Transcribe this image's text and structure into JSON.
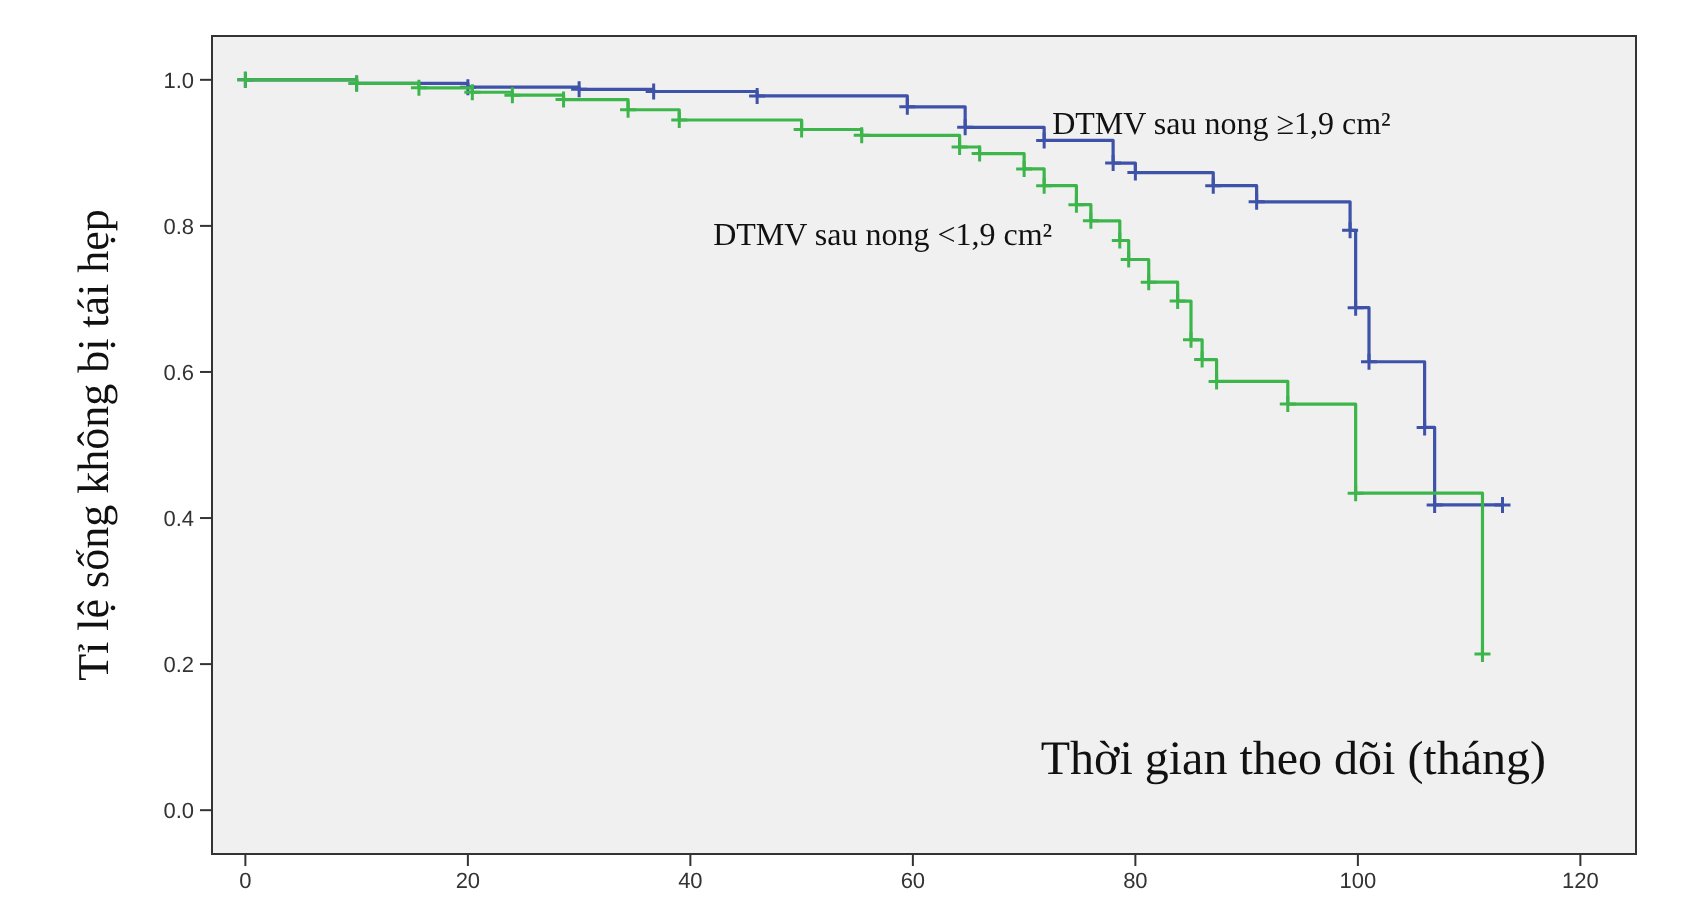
{
  "chart_data": {
    "type": "step",
    "xlabel": "Thời gian theo dõi (tháng)",
    "ylabel": "Tỉ lệ sống không bị tái hẹp",
    "xlim": [
      -3,
      125
    ],
    "ylim": [
      -0.06,
      1.06
    ],
    "xticks": [
      0,
      20,
      40,
      60,
      80,
      100,
      120
    ],
    "yticks": [
      {
        "value": 0,
        "label": "0.0"
      },
      {
        "value": 0.2,
        "label": "0.2"
      },
      {
        "value": 0.4,
        "label": "0.4"
      },
      {
        "value": 0.6,
        "label": "0.6"
      },
      {
        "value": 0.8,
        "label": "0.8"
      },
      {
        "value": 1,
        "label": "1.0"
      }
    ],
    "grid": false,
    "legend": false,
    "marker": "cross",
    "line_style": "solid",
    "series": [
      {
        "name": "DTMV sau nong  ≥1,9 cm²",
        "color": "#3d52a8",
        "x": [
          0,
          10,
          20,
          30,
          36.7,
          46,
          59.5,
          64.7,
          71.8,
          78,
          80,
          87,
          90.9,
          99.3,
          99.8,
          101,
          106,
          106.9,
          113
        ],
        "values": [
          1,
          0.995,
          0.99,
          0.987,
          0.984,
          0.978,
          0.963,
          0.935,
          0.917,
          0.886,
          0.873,
          0.855,
          0.833,
          0.794,
          0.688,
          0.614,
          0.524,
          0.418,
          0.418
        ]
      },
      {
        "name": "DTMV sau nong  <1,9 cm²",
        "color": "#3cb54a",
        "x": [
          0,
          10,
          15.6,
          20.4,
          24,
          28.6,
          34.4,
          39,
          50,
          55.4,
          64.2,
          66,
          70,
          71.8,
          74.7,
          76,
          78.6,
          79.4,
          81.2,
          83.8,
          85,
          86,
          87.3,
          93.7,
          99.8,
          111.2
        ],
        "values": [
          1,
          0.995,
          0.989,
          0.983,
          0.979,
          0.973,
          0.959,
          0.945,
          0.932,
          0.924,
          0.908,
          0.899,
          0.878,
          0.855,
          0.829,
          0.807,
          0.78,
          0.754,
          0.723,
          0.697,
          0.644,
          0.617,
          0.587,
          0.556,
          0.434,
          0.214
        ]
      }
    ]
  }
}
